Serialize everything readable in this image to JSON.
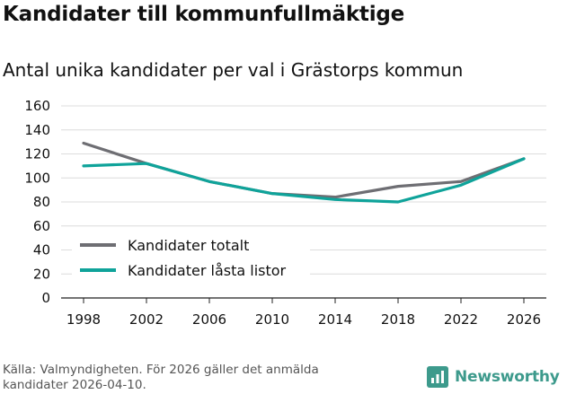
{
  "title": "Kandidater till kommunfullmäktige",
  "subtitle": "Antal unika kandidater per val i Grästorps kommun",
  "source": "Källa: Valmyndigheten. För 2026 gäller det anmälda kandidater 2026-04-10.",
  "brand": {
    "name": "Newsworthy",
    "color": "#3d9a8c",
    "icon": "newsworthy-logo-icon"
  },
  "chart_data": {
    "type": "line",
    "title": "Antal unika kandidater per val i Grästorps kommun",
    "xlabel": "",
    "ylabel": "",
    "categories": [
      "1998",
      "2002",
      "2006",
      "2010",
      "2014",
      "2018",
      "2022",
      "2026"
    ],
    "ylim": [
      0,
      160
    ],
    "yticks": [
      0,
      20,
      40,
      60,
      80,
      100,
      120,
      140,
      160
    ],
    "grid": true,
    "legend_position": "bottom-left",
    "series": [
      {
        "name": "Kandidater totalt",
        "color": "#6e6e73",
        "values": [
          129,
          112,
          97,
          87,
          84,
          93,
          97,
          116
        ]
      },
      {
        "name": "Kandidater låsta listor",
        "color": "#0fa39a",
        "values": [
          110,
          112,
          97,
          87,
          82,
          80,
          94,
          116
        ]
      }
    ]
  }
}
